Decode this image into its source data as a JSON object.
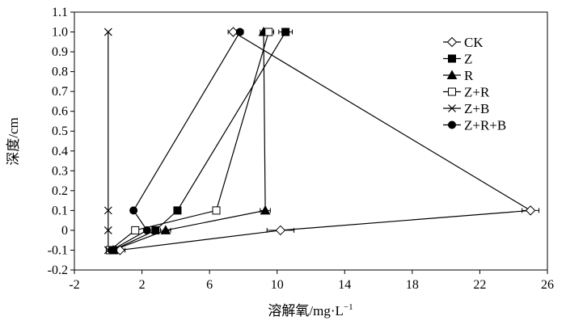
{
  "chart_data": {
    "type": "line",
    "title": "",
    "xlabel": "溶解氧/mg·L",
    "xlabel_sup": "−1",
    "ylabel": "深度/cm",
    "xlim": [
      -2,
      26
    ],
    "ylim": [
      -0.2,
      1.1
    ],
    "xticks": [
      -2,
      2,
      6,
      10,
      14,
      18,
      22,
      26
    ],
    "yticks": [
      -0.2,
      -0.1,
      0,
      0.1,
      0.2,
      0.3,
      0.4,
      0.5,
      0.6,
      0.7,
      0.8,
      0.9,
      1.0,
      1.1
    ],
    "ytick_labels": [
      "-0.2",
      "-0.1",
      "0",
      "0.1",
      "0.2",
      "0.3",
      "0.4",
      "0.5",
      "0.6",
      "0.7",
      "0.8",
      "0.9",
      "1.0",
      "1.1"
    ],
    "grid": false,
    "legend_position": "top-right",
    "series": [
      {
        "name": "CK",
        "marker": "diamond-open",
        "points": [
          [
            0.7,
            -0.1
          ],
          [
            10.2,
            0.0
          ],
          [
            25.0,
            0.1
          ],
          [
            7.4,
            1.0
          ]
        ],
        "xerr": [
          0.3,
          0.8,
          0.5,
          0.3
        ]
      },
      {
        "name": "Z",
        "marker": "square-filled",
        "points": [
          [
            0.3,
            -0.1
          ],
          [
            2.8,
            0.0
          ],
          [
            4.1,
            0.1
          ],
          [
            10.5,
            1.0
          ]
        ],
        "xerr": [
          0.1,
          0.2,
          0.2,
          0.4
        ]
      },
      {
        "name": "R",
        "marker": "triangle-filled",
        "points": [
          [
            0.3,
            -0.1
          ],
          [
            3.4,
            0.0
          ],
          [
            9.3,
            0.1
          ],
          [
            9.2,
            1.0
          ]
        ],
        "xerr": [
          0.1,
          0.3,
          0.3,
          0.2
        ]
      },
      {
        "name": "Z+R",
        "marker": "square-open",
        "points": [
          [
            0.1,
            -0.1
          ],
          [
            1.6,
            0.0
          ],
          [
            6.4,
            0.1
          ],
          [
            9.5,
            1.0
          ]
        ],
        "xerr": [
          0.1,
          0.1,
          0.2,
          0.3
        ]
      },
      {
        "name": "Z+B",
        "marker": "x",
        "points": [
          [
            0.0,
            -0.1
          ],
          [
            0.0,
            0.0
          ],
          [
            0.0,
            0.1
          ],
          [
            0.0,
            1.0
          ]
        ],
        "xerr": [
          0,
          0,
          0,
          0
        ]
      },
      {
        "name": "Z+R+B",
        "marker": "circle-filled",
        "points": [
          [
            0.2,
            -0.1
          ],
          [
            2.3,
            0.0
          ],
          [
            1.5,
            0.1
          ],
          [
            7.8,
            1.0
          ]
        ],
        "xerr": [
          0.1,
          0.1,
          0.1,
          0.2
        ]
      }
    ]
  }
}
